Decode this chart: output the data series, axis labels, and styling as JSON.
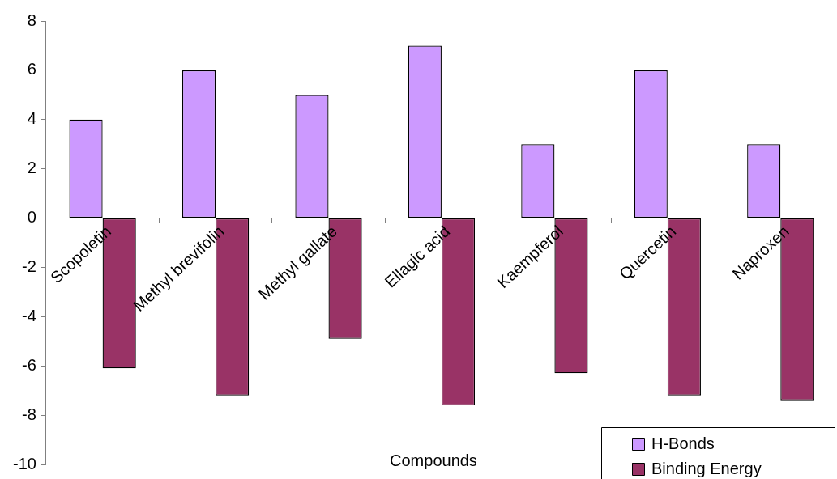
{
  "chart_data": {
    "type": "bar",
    "xlabel": "Compounds",
    "categories": [
      "Scopoletin",
      "Methyl brevifolin",
      "Methyl gallate",
      "Ellagic acid",
      "Kaempferol",
      "Quercetin",
      "Naproxen"
    ],
    "series": [
      {
        "name": "H-Bonds",
        "color": "#cc99ff",
        "values": [
          4,
          6,
          5,
          7,
          3,
          6,
          3
        ]
      },
      {
        "name": "Binding Energy",
        "color": "#993366",
        "values": [
          -6.1,
          -7.2,
          -4.9,
          -7.6,
          -6.3,
          -7.2,
          -7.4
        ]
      }
    ],
    "ylim": [
      -10,
      8
    ],
    "yticks": [
      -10,
      -8,
      -6,
      -4,
      -2,
      0,
      2,
      4,
      6,
      8
    ],
    "grid": false,
    "legend": "bottom right"
  }
}
